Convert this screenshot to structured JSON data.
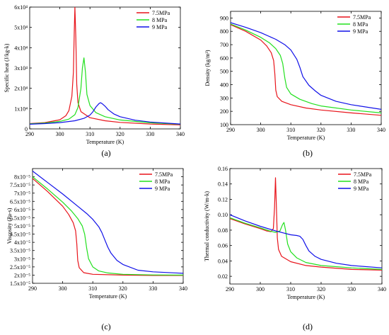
{
  "chart_data": [
    {
      "type": "line",
      "panel_label": "(a)",
      "xlabel": "Temperature (K)",
      "ylabel": "Specific heat (J/kg-k)",
      "xlim": [
        290,
        340
      ],
      "ylim": [
        0,
        60000
      ],
      "xticks": [
        290,
        300,
        310,
        320,
        330,
        340
      ],
      "xtick_labels": [
        "290",
        "300",
        "310",
        "320",
        "330",
        "340"
      ],
      "yticks": [
        0,
        10000,
        20000,
        30000,
        40000,
        50000,
        60000
      ],
      "ytick_labels": [
        "0",
        "1x10⁴",
        "2x10⁴",
        "3x10⁴",
        "4x10⁴",
        "5x10⁴",
        "6x10⁴"
      ],
      "legend_position": "top-right",
      "series": [
        {
          "name": "7.5MPa",
          "color": "#e8141b",
          "x": [
            290,
            295,
            300,
            302,
            303,
            304,
            304.5,
            304.8,
            305,
            305.3,
            305.6,
            306,
            307,
            310,
            315,
            320,
            330,
            340
          ],
          "y": [
            2600,
            3100,
            4500,
            6500,
            9000,
            16000,
            28000,
            48000,
            60000,
            45000,
            22000,
            13000,
            8500,
            5500,
            4000,
            3200,
            2400,
            2000
          ]
        },
        {
          "name": "8 MPa",
          "color": "#22e01e",
          "x": [
            290,
            295,
            300,
            303,
            305,
            306,
            307,
            307.5,
            308,
            308.5,
            309,
            310,
            312,
            315,
            320,
            330,
            340
          ],
          "y": [
            2500,
            2900,
            3700,
            4800,
            7000,
            10500,
            20000,
            30000,
            35000,
            28000,
            17000,
            11500,
            8000,
            6000,
            4400,
            3000,
            2300
          ]
        },
        {
          "name": "9 MPa",
          "color": "#1010e8",
          "x": [
            290,
            295,
            300,
            305,
            308,
            310,
            311,
            312,
            313,
            313.5,
            314,
            315,
            316,
            318,
            320,
            325,
            330,
            340
          ],
          "y": [
            2300,
            2600,
            3100,
            4000,
            5200,
            6800,
            8500,
            10800,
            12500,
            12900,
            12500,
            11200,
            9500,
            7300,
            6000,
            4300,
            3400,
            2400
          ]
        }
      ]
    },
    {
      "type": "line",
      "panel_label": "(b)",
      "xlabel": "Temperature (K)",
      "ylabel": "Density (kg/m³)",
      "xlim": [
        290,
        340
      ],
      "ylim": [
        100,
        950
      ],
      "xticks": [
        290,
        300,
        310,
        320,
        330,
        340
      ],
      "xtick_labels": [
        "290",
        "300",
        "310",
        "320",
        "330",
        "340"
      ],
      "yticks": [
        100,
        200,
        300,
        400,
        500,
        600,
        700,
        800,
        900
      ],
      "ytick_labels": [
        "100",
        "200",
        "300",
        "400",
        "500",
        "600",
        "700",
        "800",
        "900"
      ],
      "legend_position": "top-right",
      "series": [
        {
          "name": "7.5MPa",
          "color": "#e8141b",
          "x": [
            290,
            295,
            300,
            302,
            303.5,
            304.3,
            304.7,
            305,
            305.5,
            307,
            310,
            315,
            320,
            330,
            340
          ],
          "y": [
            850,
            800,
            735,
            690,
            640,
            580,
            480,
            360,
            310,
            275,
            250,
            225,
            210,
            188,
            170
          ]
        },
        {
          "name": "8 MPa",
          "color": "#22e01e",
          "x": [
            290,
            295,
            300,
            303,
            305,
            306.5,
            307.3,
            308,
            308.6,
            310,
            313,
            317,
            320,
            330,
            340
          ],
          "y": [
            855,
            810,
            755,
            712,
            670,
            620,
            560,
            450,
            380,
            330,
            290,
            258,
            240,
            210,
            188
          ]
        },
        {
          "name": "9 MPa",
          "color": "#1010e8",
          "x": [
            290,
            295,
            300,
            305,
            308,
            310,
            312,
            313,
            314,
            316,
            318,
            320,
            325,
            330,
            340
          ],
          "y": [
            865,
            830,
            790,
            740,
            700,
            660,
            590,
            530,
            460,
            395,
            355,
            320,
            275,
            250,
            215
          ]
        }
      ]
    },
    {
      "type": "line",
      "panel_label": "(c)",
      "xlabel": "Temperature (K)",
      "ylabel": "Viscosity (Pa-s)",
      "xlim": [
        290,
        340
      ],
      "ylim": [
        1.5e-05,
        8.5e-05
      ],
      "xticks": [
        290,
        300,
        310,
        320,
        330,
        340
      ],
      "xtick_labels": [
        "290",
        "300",
        "310",
        "320",
        "330",
        "340"
      ],
      "yticks": [
        1.5e-05,
        2e-05,
        2.5e-05,
        3e-05,
        3.5e-05,
        4e-05,
        4.5e-05,
        5e-05,
        5.5e-05,
        6e-05,
        6.5e-05,
        7e-05,
        7.5e-05,
        8e-05
      ],
      "ytick_labels": [
        "1.5x10⁻⁵",
        "2x10⁻⁵",
        "2.5x10⁻⁵",
        "3x10⁻⁵",
        "3.5x10⁻⁵",
        "4x10⁻⁵",
        "4.5x10⁻⁵",
        "5x10⁻⁵",
        "5.5x10⁻⁵",
        "6x10⁻⁵",
        "6.5x10⁻⁵",
        "7x10⁻⁵",
        "7.5x10⁻⁵",
        "8x10⁻⁵"
      ],
      "legend_position": "top-right",
      "series": [
        {
          "name": "7.5MPa",
          "color": "#e8141b",
          "x": [
            290,
            295,
            300,
            302,
            303.5,
            304.3,
            304.7,
            305,
            305.5,
            307,
            310,
            320,
            330,
            340
          ],
          "y": [
            7.9e-05,
            7.1e-05,
            6.2e-05,
            5.7e-05,
            5.2e-05,
            4.7e-05,
            3.9e-05,
            2.9e-05,
            2.45e-05,
            2.15e-05,
            2.05e-05,
            2e-05,
            1.98e-05,
            1.98e-05
          ]
        },
        {
          "name": "8 MPa",
          "color": "#22e01e",
          "x": [
            290,
            295,
            300,
            303,
            305,
            306.5,
            307.3,
            308,
            308.6,
            310,
            312,
            315,
            320,
            330,
            340
          ],
          "y": [
            8e-05,
            7.25e-05,
            6.45e-05,
            5.9e-05,
            5.45e-05,
            5e-05,
            4.5e-05,
            3.6e-05,
            3e-05,
            2.5e-05,
            2.25e-05,
            2.13e-05,
            2.05e-05,
            2.01e-05,
            2e-05
          ]
        },
        {
          "name": "9 MPa",
          "color": "#1010e8",
          "x": [
            290,
            295,
            300,
            305,
            308,
            310,
            312,
            313,
            314,
            315,
            316,
            318,
            320,
            325,
            330,
            340
          ],
          "y": [
            8.35e-05,
            7.65e-05,
            6.95e-05,
            6.2e-05,
            5.75e-05,
            5.4e-05,
            4.95e-05,
            4.6e-05,
            4.15e-05,
            3.7e-05,
            3.35e-05,
            2.9e-05,
            2.65e-05,
            2.3e-05,
            2.2e-05,
            2.11e-05
          ]
        }
      ]
    },
    {
      "type": "line",
      "panel_label": "(d)",
      "xlabel": "Temperature (K)",
      "ylabel": "Thermal conductivity (W/m-k)",
      "xlim": [
        290,
        340
      ],
      "ylim": [
        0.01,
        0.16
      ],
      "xticks": [
        290,
        300,
        310,
        320,
        330,
        340
      ],
      "xtick_labels": [
        "290",
        "300",
        "310",
        "320",
        "330",
        "340"
      ],
      "yticks": [
        0.02,
        0.04,
        0.06,
        0.08,
        0.1,
        0.12,
        0.14,
        0.16
      ],
      "ytick_labels": [
        "0.02",
        "0.04",
        "0.06",
        "0.08",
        "0.10",
        "0.12",
        "0.14",
        "0.16"
      ],
      "legend_position": "top-right",
      "series": [
        {
          "name": "7.5MPa",
          "color": "#e8141b",
          "x": [
            290,
            295,
            300,
            302,
            303.5,
            304.3,
            304.7,
            305,
            305.3,
            305.6,
            306,
            307,
            310,
            315,
            320,
            330,
            340
          ],
          "y": [
            0.095,
            0.088,
            0.082,
            0.079,
            0.078,
            0.082,
            0.11,
            0.148,
            0.11,
            0.07,
            0.055,
            0.046,
            0.039,
            0.034,
            0.032,
            0.029,
            0.028
          ]
        },
        {
          "name": "8 MPa",
          "color": "#22e01e",
          "x": [
            290,
            295,
            300,
            303,
            305,
            306.5,
            307.3,
            307.8,
            308.3,
            309,
            310,
            312,
            315,
            320,
            330,
            340
          ],
          "y": [
            0.096,
            0.089,
            0.083,
            0.079,
            0.077,
            0.079,
            0.087,
            0.09,
            0.08,
            0.062,
            0.052,
            0.044,
            0.038,
            0.034,
            0.031,
            0.029
          ]
        },
        {
          "name": "9 MPa",
          "color": "#1010e8",
          "x": [
            290,
            295,
            300,
            305,
            308,
            310,
            312,
            313,
            314,
            315,
            316,
            318,
            320,
            325,
            330,
            340
          ],
          "y": [
            0.1,
            0.092,
            0.085,
            0.079,
            0.076,
            0.074,
            0.073,
            0.072,
            0.068,
            0.06,
            0.053,
            0.046,
            0.042,
            0.037,
            0.034,
            0.031
          ]
        }
      ]
    }
  ]
}
